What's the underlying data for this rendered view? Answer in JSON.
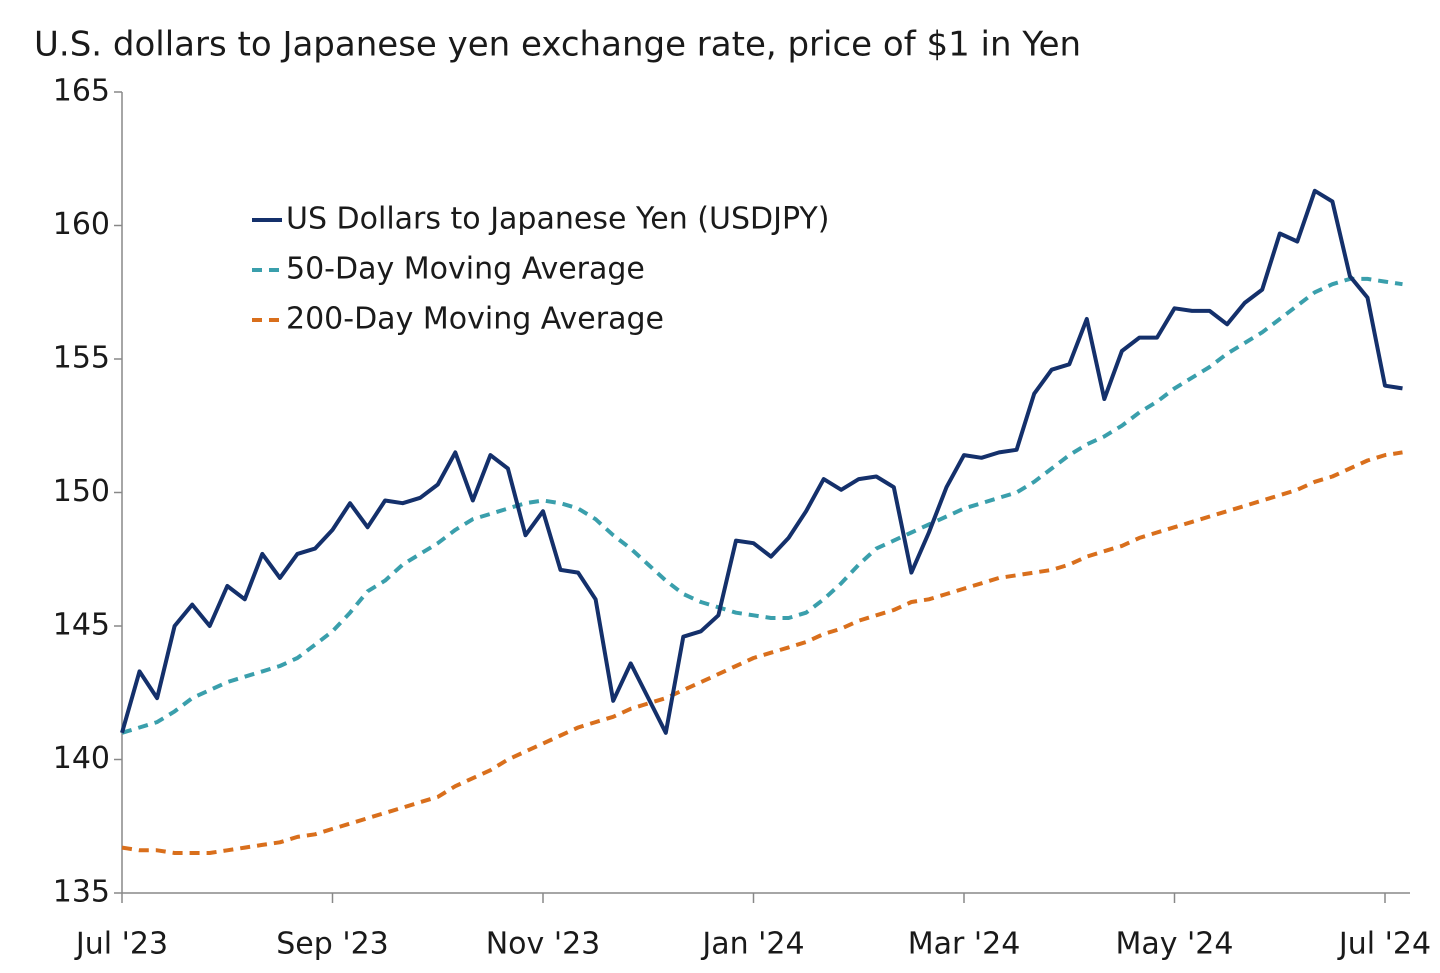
{
  "chart_data": {
    "type": "line",
    "title": "U.S. dollars to Japanese yen exchange rate, price of $1 in Yen",
    "categories": [
      "Jul '23",
      null,
      null,
      null,
      null,
      null,
      null,
      null,
      null,
      null,
      null,
      null,
      "Sep '23",
      null,
      null,
      null,
      null,
      null,
      null,
      null,
      null,
      null,
      null,
      null,
      "Nov '23",
      null,
      null,
      null,
      null,
      null,
      null,
      null,
      null,
      null,
      null,
      null,
      "Jan '24",
      null,
      null,
      null,
      null,
      null,
      null,
      null,
      null,
      null,
      null,
      null,
      "Mar '24",
      null,
      null,
      null,
      null,
      null,
      null,
      null,
      null,
      null,
      null,
      null,
      "May '24",
      null,
      null,
      null,
      null,
      null,
      null,
      null,
      null,
      null,
      null,
      null,
      "Jul '24",
      null
    ],
    "series": [
      {
        "name": "US Dollars to Japanese Yen (USDJPY)",
        "color": "#14306b",
        "dashed": false,
        "values": [
          141.0,
          143.3,
          142.3,
          145.0,
          145.8,
          145.0,
          146.5,
          146.0,
          147.7,
          146.8,
          147.7,
          147.9,
          148.6,
          149.6,
          148.7,
          149.7,
          149.6,
          149.8,
          150.3,
          151.5,
          149.7,
          151.4,
          150.9,
          148.4,
          149.3,
          147.1,
          147.0,
          146.0,
          142.2,
          143.6,
          142.3,
          141.0,
          144.6,
          144.8,
          145.4,
          148.2,
          148.1,
          147.6,
          148.3,
          149.3,
          150.5,
          150.1,
          150.5,
          150.6,
          150.2,
          147.0,
          148.5,
          150.2,
          151.4,
          151.3,
          151.5,
          151.6,
          153.7,
          154.6,
          154.8,
          156.5,
          153.5,
          155.3,
          155.8,
          155.8,
          156.9,
          156.8,
          156.8,
          156.3,
          157.1,
          157.6,
          159.7,
          159.4,
          161.3,
          160.9,
          158.1,
          157.3,
          154.0,
          153.9
        ]
      },
      {
        "name": "50-Day Moving Average",
        "color": "#3a9fac",
        "dashed": true,
        "values": [
          141.0,
          141.2,
          141.4,
          141.8,
          142.3,
          142.6,
          142.9,
          143.1,
          143.3,
          143.5,
          143.8,
          144.3,
          144.8,
          145.5,
          146.3,
          146.7,
          147.3,
          147.7,
          148.1,
          148.6,
          149.0,
          149.2,
          149.4,
          149.6,
          149.7,
          149.6,
          149.4,
          149.0,
          148.4,
          147.9,
          147.3,
          146.7,
          146.2,
          145.9,
          145.7,
          145.5,
          145.4,
          145.3,
          145.3,
          145.5,
          146.0,
          146.6,
          147.3,
          147.9,
          148.2,
          148.5,
          148.8,
          149.1,
          149.4,
          149.6,
          149.8,
          150.0,
          150.4,
          150.9,
          151.4,
          151.8,
          152.1,
          152.5,
          153.0,
          153.4,
          153.9,
          154.3,
          154.7,
          155.2,
          155.6,
          156.0,
          156.5,
          157.0,
          157.5,
          157.8,
          158.0,
          158.0,
          157.9,
          157.8
        ]
      },
      {
        "name": "200-Day Moving Average",
        "color": "#d96f1c",
        "dashed": true,
        "values": [
          136.7,
          136.6,
          136.6,
          136.5,
          136.5,
          136.5,
          136.6,
          136.7,
          136.8,
          136.9,
          137.1,
          137.2,
          137.4,
          137.6,
          137.8,
          138.0,
          138.2,
          138.4,
          138.6,
          139.0,
          139.3,
          139.6,
          140.0,
          140.3,
          140.6,
          140.9,
          141.2,
          141.4,
          141.6,
          141.9,
          142.1,
          142.3,
          142.6,
          142.9,
          143.2,
          143.5,
          143.8,
          144.0,
          144.2,
          144.4,
          144.7,
          144.9,
          145.2,
          145.4,
          145.6,
          145.9,
          146.0,
          146.2,
          146.4,
          146.6,
          146.8,
          146.9,
          147.0,
          147.1,
          147.3,
          147.6,
          147.8,
          148.0,
          148.3,
          148.5,
          148.7,
          148.9,
          149.1,
          149.3,
          149.5,
          149.7,
          149.9,
          150.1,
          150.4,
          150.6,
          150.9,
          151.2,
          151.4,
          151.5
        ]
      }
    ],
    "ylim": [
      135,
      165
    ],
    "yticks": [
      135,
      140,
      145,
      150,
      155,
      160,
      165
    ],
    "grid": false
  }
}
